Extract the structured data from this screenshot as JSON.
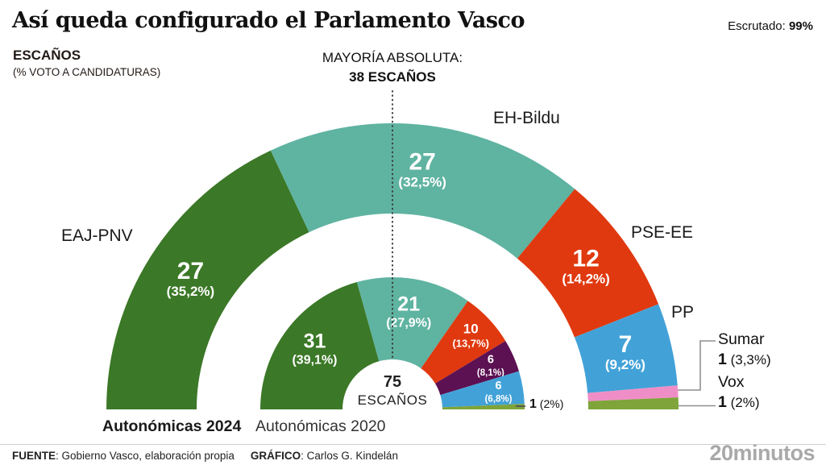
{
  "header": {
    "title": "Así queda configurado el Parlamento Vasco",
    "escrutado_label": "Escrutado: ",
    "escrutado_value": "99%"
  },
  "panel": {
    "units_title": "ESCAÑOS",
    "units_subtitle": "(% VOTO A CANDIDATURAS)",
    "majority_label": "MAYORÍA ABSOLUTA:",
    "majority_value": "38 ESCAÑOS",
    "center_value": "75",
    "center_label": "ESCAÑOS"
  },
  "chart_data": {
    "type": "pie",
    "variant": "nested-half-donut-hemicycle",
    "title": "Así queda configurado el Parlamento Vasco",
    "units": "escaños",
    "total_seats": 75,
    "majority_seats": 38,
    "majority_marker": "dotted-line-at-center",
    "rings": [
      {
        "id": "2024",
        "label": "Autonómicas 2024",
        "segments": [
          {
            "party": "EAJ-PNV",
            "seats": 27,
            "pct": 35.2,
            "pct_label": "(35,2%)",
            "color": "#3b7827"
          },
          {
            "party": "EH-Bildu",
            "seats": 27,
            "pct": 32.5,
            "pct_label": "(32,5%)",
            "color": "#5fb3a1"
          },
          {
            "party": "PSE-EE",
            "seats": 12,
            "pct": 14.2,
            "pct_label": "(14,2%)",
            "color": "#e0390f"
          },
          {
            "party": "PP",
            "seats": 7,
            "pct": 9.2,
            "pct_label": "(9,2%)",
            "color": "#42a2d8"
          },
          {
            "party": "Sumar",
            "seats": 1,
            "pct": 3.3,
            "pct_label": "(3,3%)",
            "color": "#ef8ec6",
            "callout": true
          },
          {
            "party": "Vox",
            "seats": 1,
            "pct": 2,
            "pct_label": "(2%)",
            "color": "#7ea43a",
            "callout": true
          }
        ]
      },
      {
        "id": "2020",
        "label": "Autonómicas 2020",
        "segments": [
          {
            "party": "",
            "seats": 31,
            "pct": 39.1,
            "pct_label": "(39,1%)",
            "color": "#3b7827"
          },
          {
            "party": "",
            "seats": 21,
            "pct": 27.9,
            "pct_label": "(27,9%)",
            "color": "#5fb3a1"
          },
          {
            "party": "",
            "seats": 10,
            "pct": 13.7,
            "pct_label": "(13,7%)",
            "color": "#e0390f"
          },
          {
            "party": "",
            "seats": 6,
            "pct": 8.1,
            "pct_label": "(8,1%)",
            "color": "#5c1153"
          },
          {
            "party": "",
            "seats": 6,
            "pct": 6.8,
            "pct_label": "(6,8%)",
            "color": "#42a2d8"
          },
          {
            "party": "",
            "seats": 1,
            "pct": 2,
            "pct_label": "(2%)",
            "color": "#7ea43a",
            "callout": true
          }
        ]
      }
    ]
  },
  "footer": {
    "source_label": "FUENTE",
    "source_text": ": Gobierno Vasco, elaboración propia",
    "credit_label": "GRÁFICO",
    "credit_text": ": Carlos G. Kindelán",
    "brand": "20minutos"
  }
}
